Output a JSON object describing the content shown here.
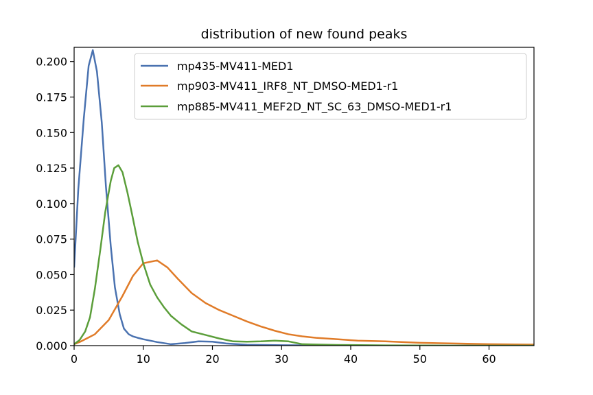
{
  "chart_data": {
    "type": "line",
    "title": "distribution of new found peaks",
    "xlabel": "",
    "ylabel": "",
    "xlim": [
      0,
      66.5
    ],
    "ylim": [
      0,
      0.21
    ],
    "xticks": [
      0,
      10,
      20,
      30,
      40,
      50,
      60
    ],
    "yticks": [
      0.0,
      0.025,
      0.05,
      0.075,
      0.1,
      0.125,
      0.15,
      0.175,
      0.2
    ],
    "xtick_labels": [
      "0",
      "10",
      "20",
      "30",
      "40",
      "50",
      "60"
    ],
    "ytick_labels": [
      "0.000",
      "0.025",
      "0.050",
      "0.075",
      "0.100",
      "0.125",
      "0.150",
      "0.175",
      "0.200"
    ],
    "grid": false,
    "legend_position": "top-right",
    "series": [
      {
        "name": "mp435-MV411-MED1",
        "color": "#4a72b0",
        "x": [
          0,
          0.6,
          1.4,
          2.1,
          2.7,
          3.3,
          4.0,
          4.6,
          5.3,
          5.9,
          6.6,
          7.2,
          7.9,
          8.5,
          9.2,
          10.0,
          12.0,
          14.0,
          16.0,
          18.0,
          20.0,
          22.0,
          25.0,
          30.0,
          35.0,
          40.0,
          50.0,
          60.0,
          66.5
        ],
        "y": [
          0.055,
          0.11,
          0.16,
          0.197,
          0.208,
          0.193,
          0.157,
          0.112,
          0.07,
          0.041,
          0.022,
          0.012,
          0.008,
          0.0065,
          0.0055,
          0.0045,
          0.0025,
          0.001,
          0.0018,
          0.003,
          0.0028,
          0.0015,
          0.0006,
          0.0003,
          0.0002,
          0.0001,
          0.0,
          0.0,
          0.0
        ]
      },
      {
        "name": "mp903-MV411_IRF8_NT_DMSO-MED1-r1",
        "color": "#e07b28",
        "x": [
          0,
          1.0,
          3.0,
          5.0,
          7.0,
          8.5,
          10.0,
          11.0,
          12.0,
          13.5,
          15.0,
          17.0,
          19.0,
          21.0,
          23.0,
          25.0,
          27.0,
          29.0,
          31.0,
          33.0,
          35.0,
          38.0,
          41.0,
          45.0,
          50.0,
          55.0,
          60.0,
          66.5
        ],
        "y": [
          0.001,
          0.003,
          0.008,
          0.018,
          0.035,
          0.049,
          0.058,
          0.059,
          0.06,
          0.055,
          0.047,
          0.037,
          0.03,
          0.025,
          0.021,
          0.017,
          0.0135,
          0.0105,
          0.008,
          0.0065,
          0.0055,
          0.0045,
          0.0035,
          0.003,
          0.002,
          0.0015,
          0.001,
          0.0007
        ]
      },
      {
        "name": "mp885-MV411_MEF2D_NT_SC_63_DMSO-MED1-r1",
        "color": "#5b9e3a",
        "x": [
          0,
          0.8,
          1.6,
          2.3,
          3.0,
          3.8,
          4.5,
          5.3,
          5.8,
          6.4,
          7.0,
          7.7,
          8.4,
          9.2,
          10.0,
          11.0,
          12.0,
          13.0,
          14.0,
          15.5,
          17.0,
          19.0,
          21.0,
          23.0,
          25.0,
          27.0,
          29.0,
          31.0,
          33.0,
          35.0,
          38.0,
          40.0,
          45.0,
          50.0,
          55.0,
          60.0,
          66.5
        ],
        "y": [
          0.001,
          0.004,
          0.01,
          0.02,
          0.04,
          0.068,
          0.094,
          0.116,
          0.125,
          0.127,
          0.122,
          0.108,
          0.092,
          0.073,
          0.058,
          0.043,
          0.034,
          0.027,
          0.021,
          0.015,
          0.01,
          0.0075,
          0.005,
          0.003,
          0.0028,
          0.003,
          0.0035,
          0.003,
          0.001,
          0.0008,
          0.0005,
          0.0004,
          0.0002,
          0.0001,
          0.0,
          0.0,
          0.0
        ]
      }
    ]
  }
}
